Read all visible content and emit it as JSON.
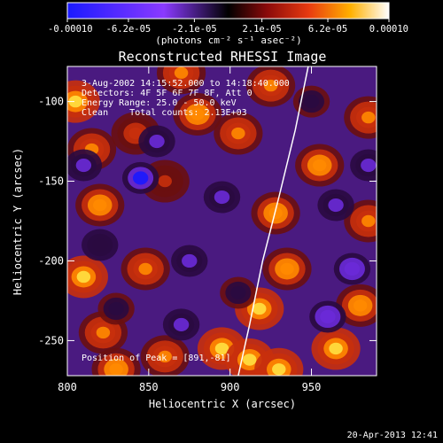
{
  "chart_data": {
    "type": "heatmap",
    "title": "Reconstructed RHESSI Image",
    "xlabel": "Heliocentric X (arcsec)",
    "ylabel": "Heliocentric Y (arcsec)",
    "xlim": [
      800,
      990
    ],
    "ylim": [
      -272,
      -78
    ],
    "x_ticks": [
      800,
      850,
      900,
      950
    ],
    "y_ticks": [
      -100,
      -150,
      -200,
      -250
    ],
    "x_tick_labels": [
      "800",
      "850",
      "900",
      "950"
    ],
    "y_tick_labels": [
      "-100",
      "-150",
      "-200",
      "-250"
    ],
    "colorbar": {
      "min": -0.0001,
      "max": 0.0001,
      "ticks": [
        -0.0001,
        -6.2e-05,
        -2.1e-05,
        2.1e-05,
        6.2e-05,
        0.0001
      ],
      "tick_labels": [
        "-0.00010",
        "-6.2e-05",
        "-2.1e-05",
        "2.1e-05",
        "6.2e-05",
        "0.00010"
      ],
      "units_label": "(photons cm⁻² s⁻¹ asec⁻²)",
      "colormap": "blue-purple-red-yellow-white"
    },
    "annotations": {
      "time_range": "3-Aug-2002 14:15:52.000 to 14:18:40.000",
      "detectors": "Detectors: 4F 5F 6F 7F 8F, Att 0",
      "energy": "Energy Range: 25.0 - 50.0 keV",
      "clean": "Clean    Total counts: 2.13E+03",
      "peak": "Position of Peak = [891,-81]"
    },
    "peak_position": [
      891,
      -81
    ],
    "limb_curve": {
      "x": [
        905,
        912,
        920,
        930,
        940,
        948
      ],
      "y": [
        -272,
        -240,
        -200,
        -160,
        -118,
        -78
      ]
    },
    "blobs": [
      {
        "x": 805,
        "y": -100,
        "value": 8e-05
      },
      {
        "x": 815,
        "y": -130,
        "value": 6e-05
      },
      {
        "x": 820,
        "y": -165,
        "value": 7e-05
      },
      {
        "x": 810,
        "y": -210,
        "value": 9e-05
      },
      {
        "x": 822,
        "y": -245,
        "value": 6.5e-05
      },
      {
        "x": 830,
        "y": -268,
        "value": 7.5e-05
      },
      {
        "x": 860,
        "y": -260,
        "value": 6e-05
      },
      {
        "x": 895,
        "y": -255,
        "value": 9.5e-05
      },
      {
        "x": 912,
        "y": -262,
        "value": 9e-05
      },
      {
        "x": 930,
        "y": -268,
        "value": 8.5e-05
      },
      {
        "x": 965,
        "y": -255,
        "value": 9.5e-05
      },
      {
        "x": 980,
        "y": -228,
        "value": 7e-05
      },
      {
        "x": 918,
        "y": -230,
        "value": 8e-05
      },
      {
        "x": 935,
        "y": -205,
        "value": 7e-05
      },
      {
        "x": 928,
        "y": -170,
        "value": 7.5e-05
      },
      {
        "x": 905,
        "y": -120,
        "value": 6.5e-05
      },
      {
        "x": 880,
        "y": -108,
        "value": 7e-05
      },
      {
        "x": 870,
        "y": -82,
        "value": 6e-05
      },
      {
        "x": 925,
        "y": -90,
        "value": 6.5e-05
      },
      {
        "x": 955,
        "y": -140,
        "value": 7e-05
      },
      {
        "x": 985,
        "y": -110,
        "value": 6e-05
      },
      {
        "x": 985,
        "y": -175,
        "value": 5e-05
      },
      {
        "x": 848,
        "y": -205,
        "value": 5.5e-05
      },
      {
        "x": 860,
        "y": -150,
        "value": 2.5e-05
      },
      {
        "x": 842,
        "y": -120,
        "value": 3e-05
      },
      {
        "x": 845,
        "y": -148,
        "value": -0.0001
      },
      {
        "x": 855,
        "y": -125,
        "value": -5e-05
      },
      {
        "x": 875,
        "y": -200,
        "value": -4e-05
      },
      {
        "x": 895,
        "y": -160,
        "value": -4.5e-05
      },
      {
        "x": 905,
        "y": -220,
        "value": -3e-05
      },
      {
        "x": 960,
        "y": -235,
        "value": -6e-05
      },
      {
        "x": 975,
        "y": -205,
        "value": -7e-05
      },
      {
        "x": 965,
        "y": -165,
        "value": -4e-05
      },
      {
        "x": 985,
        "y": -140,
        "value": -5e-05
      },
      {
        "x": 950,
        "y": -100,
        "value": -3e-05
      },
      {
        "x": 820,
        "y": -190,
        "value": -3.5e-05
      },
      {
        "x": 830,
        "y": -230,
        "value": -3e-05
      },
      {
        "x": 870,
        "y": -240,
        "value": -4e-05
      },
      {
        "x": 810,
        "y": -140,
        "value": -4e-05
      }
    ]
  },
  "footer": {
    "date": "20-Apr-2013 12:41"
  }
}
